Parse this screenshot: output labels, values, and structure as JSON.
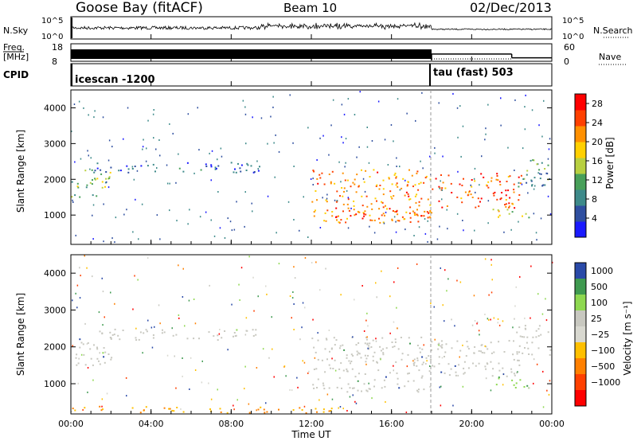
{
  "header": {
    "station": "Goose Bay (fitACF)",
    "beam": "Beam 10",
    "date": "02/Dec/2013"
  },
  "strip_labels": {
    "nsky": "N.Sky",
    "nsky_ticks": [
      "10^5",
      "10^0"
    ],
    "nsearch": "N.Search",
    "nsearch_ticks": [
      "10^5",
      "10^0"
    ],
    "freq_line1": "Freq.",
    "freq_line2": "[MHz]",
    "freq_ticks": [
      "18",
      "8"
    ],
    "nave": "Nave",
    "nave_ticks": [
      "60",
      "0"
    ],
    "cpid": "CPID",
    "cpid_mode1": "icescan -1200",
    "cpid_mode2": "tau (fast) 503"
  },
  "chart_data": [
    {
      "type": "line",
      "name": "N.Sky / N.Search noise",
      "x_range_hours": [
        0,
        24
      ],
      "yscale": "log",
      "ylim": [
        1,
        100000
      ],
      "note_level_before_18h": "~10^4 with fluctuations",
      "note_level_after_18h": "~10^3.5 smoother"
    },
    {
      "type": "line",
      "name": "Frequency / Nave",
      "freq_ylim": [
        8,
        18
      ],
      "nave_ylim": [
        0,
        60
      ],
      "freq_mhz_before_18h": "alternating 8–18 (dense)",
      "nave_segments": [
        {
          "start": 18.0,
          "end": 22.0,
          "value": 25
        },
        {
          "start": 22.0,
          "end": 24.0,
          "value": 12
        }
      ],
      "freq_mhz_after_18h": 10
    },
    {
      "type": "heatmap",
      "name": "Power",
      "xlabel": "",
      "ylabel": "Slant Range [km]",
      "xlim_hours": [
        0,
        24
      ],
      "ylim_km": [
        180,
        4500
      ],
      "y_ticks": [
        1000,
        2000,
        3000,
        4000
      ],
      "colorbar": {
        "label": "Power [dB]",
        "ticks": [
          4,
          8,
          12,
          16,
          20,
          24,
          28
        ],
        "range": [
          0,
          30
        ]
      },
      "regions": [
        {
          "t0": 0.0,
          "t1": 2.0,
          "r0": 1500,
          "r1": 2300,
          "level": 14
        },
        {
          "t0": 1.0,
          "t1": 9.5,
          "r0": 2200,
          "r1": 2500,
          "level": 6
        },
        {
          "t0": 12.0,
          "t1": 18.0,
          "r0": 800,
          "r1": 2300,
          "level": 22
        },
        {
          "t0": 13.0,
          "t1": 18.0,
          "r0": 800,
          "r1": 1200,
          "level": 24
        },
        {
          "t0": 18.0,
          "t1": 22.5,
          "r0": 1200,
          "r1": 2200,
          "level": 24
        },
        {
          "t0": 21.0,
          "t1": 23.0,
          "r0": 900,
          "r1": 1200,
          "level": 18
        },
        {
          "t0": 22.0,
          "t1": 24.0,
          "r0": 1800,
          "r1": 2600,
          "level": 10
        }
      ]
    },
    {
      "type": "heatmap",
      "name": "Velocity",
      "xlabel": "Time UT",
      "ylabel": "Slant Range [km]",
      "xlim_hours": [
        0,
        24
      ],
      "x_ticks": [
        "00:00",
        "04:00",
        "08:00",
        "12:00",
        "16:00",
        "20:00",
        "00:00"
      ],
      "ylim_km": [
        180,
        4500
      ],
      "y_ticks": [
        1000,
        2000,
        3000,
        4000
      ],
      "colorbar": {
        "label": "Velocity [m s⁻¹]",
        "ticks": [
          "1000",
          "500",
          "100",
          "25",
          "−25",
          "−100",
          "−500",
          "−1000"
        ]
      },
      "regions": [
        {
          "t0": 0.0,
          "t1": 2.0,
          "r0": 1500,
          "r1": 2300,
          "cls": "ground"
        },
        {
          "t0": 1.0,
          "t1": 9.5,
          "r0": 2200,
          "r1": 2500,
          "cls": "ground"
        },
        {
          "t0": 12.0,
          "t1": 18.0,
          "r0": 800,
          "r1": 2300,
          "cls": "ground"
        },
        {
          "t0": 18.0,
          "t1": 22.5,
          "r0": 1200,
          "r1": 2200,
          "cls": "ground"
        },
        {
          "t0": 21.0,
          "t1": 23.0,
          "r0": 900,
          "r1": 1200,
          "cls": "greenpos"
        },
        {
          "t0": 22.0,
          "t1": 24.0,
          "r0": 1800,
          "r1": 2600,
          "cls": "ground"
        },
        {
          "t0": 0.0,
          "t1": 13.0,
          "r0": 180,
          "r1": 400,
          "cls": "orange"
        }
      ]
    }
  ],
  "colors": {
    "power_scale": [
      "#1a1aff",
      "#2f4fa0",
      "#3e8a8a",
      "#48a05a",
      "#b8d040",
      "#ffd000",
      "#ff9000",
      "#ff4000",
      "#ff0000"
    ],
    "vel_scale": [
      "#2a4aa8",
      "#3f9a50",
      "#8ed850",
      "#c8c8c0",
      "#d8d8d0",
      "#ffc000",
      "#ff8000",
      "#ff4000",
      "#ff0000"
    ],
    "ground": "#c8c8c0"
  }
}
